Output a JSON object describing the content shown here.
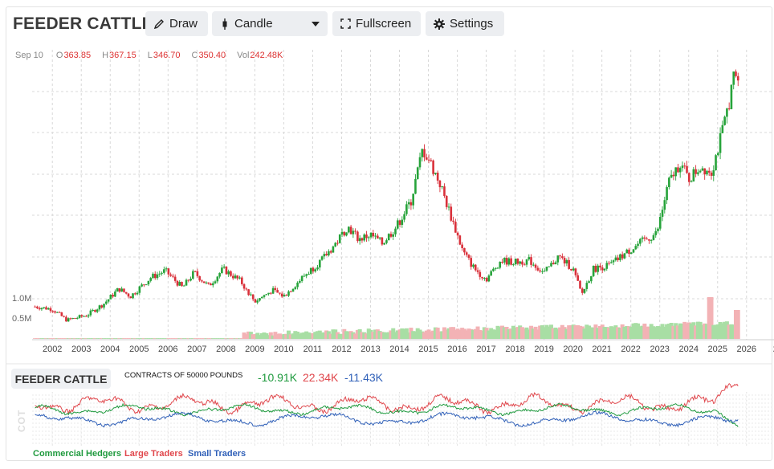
{
  "header": {
    "title": "FEEDER CATTLE",
    "draw_label": "Draw",
    "chart_type_label": "Candle",
    "fullscreen_label": "Fullscreen",
    "settings_label": "Settings"
  },
  "ohlc": {
    "date": "Sep 10",
    "open_key": "O",
    "open": "363.85",
    "high_key": "H",
    "high": "367.15",
    "low_key": "L",
    "low": "346.70",
    "close_key": "C",
    "close": "350.40",
    "vol_key": "Vol",
    "vol": "242.48K"
  },
  "volume_axis": {
    "top": "1.0M",
    "mid": "0.5M"
  },
  "x_axis": [
    "2002",
    "2003",
    "2004",
    "2005",
    "2006",
    "2007",
    "2008",
    "2009",
    "2010",
    "2011",
    "2012",
    "2013",
    "2014",
    "2015",
    "2016",
    "2017",
    "2018",
    "2019",
    "2020",
    "2021",
    "2022",
    "2023",
    "2024",
    "2025",
    "2026",
    "2"
  ],
  "cot": {
    "title": "FEEDER CATTLE",
    "subtitle": "CONTRACTS OF 50000 POUNDS",
    "commercial_value": "-10.91K",
    "large_value": "22.34K",
    "small_value": "-11.43K",
    "axis_label": "COT",
    "legend_commercial": "Commercial Hedgers",
    "legend_large": "Large Traders",
    "legend_small": "Small Traders"
  },
  "colors": {
    "up": "#26a33a",
    "down": "#d9303a",
    "vol_up": "#a8dea4",
    "vol_down": "#f3b2b5",
    "commercial": "#1f9a3e",
    "large": "#e0474c",
    "small": "#3060b8"
  },
  "chart_data": {
    "type": "candlestick",
    "x_start_year": 2001.3,
    "x_end_year": 2026.95,
    "price_keypoints": [
      [
        2001.4,
        96
      ],
      [
        2002.0,
        93
      ],
      [
        2002.5,
        80
      ],
      [
        2003.2,
        86
      ],
      [
        2003.8,
        100
      ],
      [
        2004.3,
        117
      ],
      [
        2004.7,
        108
      ],
      [
        2005.4,
        130
      ],
      [
        2005.9,
        138
      ],
      [
        2006.5,
        118
      ],
      [
        2006.9,
        136
      ],
      [
        2007.4,
        120
      ],
      [
        2007.9,
        140
      ],
      [
        2008.5,
        126
      ],
      [
        2009.0,
        102
      ],
      [
        2009.6,
        115
      ],
      [
        2010.0,
        108
      ],
      [
        2010.7,
        132
      ],
      [
        2011.3,
        150
      ],
      [
        2011.8,
        170
      ],
      [
        2012.2,
        190
      ],
      [
        2012.6,
        175
      ],
      [
        2013.0,
        180
      ],
      [
        2013.4,
        170
      ],
      [
        2013.9,
        190
      ],
      [
        2014.4,
        220
      ],
      [
        2014.8,
        280
      ],
      [
        2015.0,
        270
      ],
      [
        2015.4,
        240
      ],
      [
        2015.7,
        210
      ],
      [
        2016.2,
        160
      ],
      [
        2016.6,
        140
      ],
      [
        2017.0,
        128
      ],
      [
        2017.5,
        150
      ],
      [
        2018.0,
        148
      ],
      [
        2018.5,
        150
      ],
      [
        2019.0,
        135
      ],
      [
        2019.5,
        155
      ],
      [
        2020.0,
        140
      ],
      [
        2020.3,
        110
      ],
      [
        2020.7,
        140
      ],
      [
        2021.3,
        145
      ],
      [
        2021.8,
        158
      ],
      [
        2022.3,
        170
      ],
      [
        2022.9,
        182
      ],
      [
        2023.3,
        240
      ],
      [
        2023.7,
        265
      ],
      [
        2024.0,
        245
      ],
      [
        2024.4,
        260
      ],
      [
        2024.8,
        255
      ],
      [
        2025.2,
        305
      ],
      [
        2025.6,
        370
      ],
      [
        2025.72,
        355
      ]
    ],
    "price_min": 60,
    "price_max": 380,
    "volume_max": 1.2,
    "cot_series": [
      "Commercial Hedgers",
      "Large Traders",
      "Small Traders"
    ]
  }
}
